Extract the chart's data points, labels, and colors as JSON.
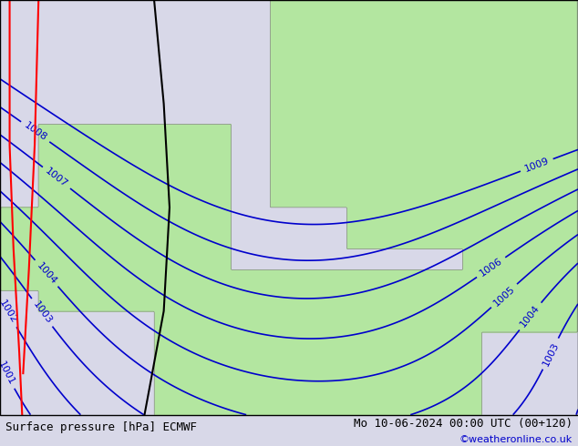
{
  "title_left": "Surface pressure [hPa] ECMWF",
  "title_right": "Mo 10-06-2024 00:00 UTC (00+120)",
  "credit": "©weatheronline.co.uk",
  "credit_color": "#0000cc",
  "background_land": "#b3e6a0",
  "background_sea": "#d8d8e8",
  "contour_color": "#0000cc",
  "contour_levels": [
    1001,
    1002,
    1003,
    1004,
    1005,
    1006,
    1007,
    1008,
    1009
  ],
  "contour_linewidth": 1.2,
  "label_fontsize": 8,
  "border_color": "#888888",
  "title_fontsize": 9,
  "fig_width": 6.34,
  "fig_height": 4.9,
  "dpi": 100
}
